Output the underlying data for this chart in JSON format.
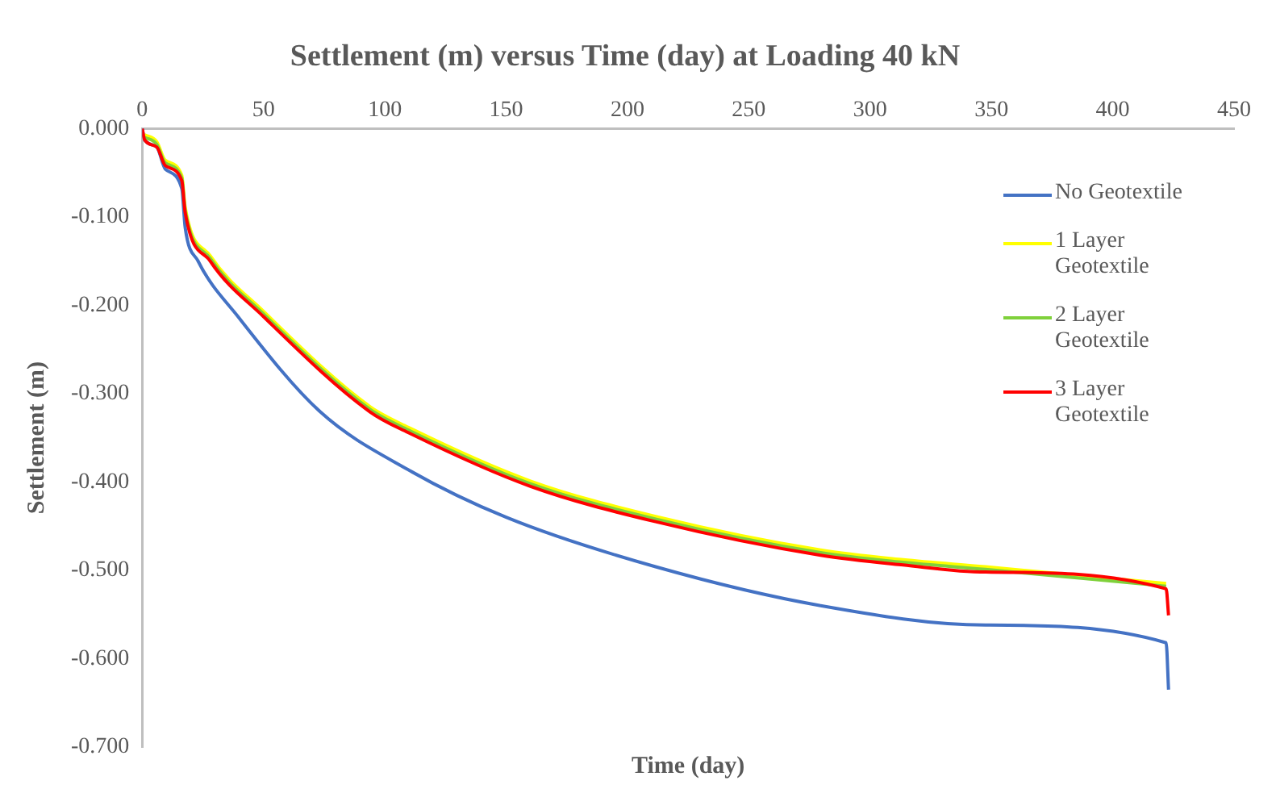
{
  "chart_data": {
    "type": "line",
    "title": "Settlement (m) versus Time (day) at Loading 40 kN",
    "xlabel": "Time (day)",
    "ylabel": "Settlement (m)",
    "xlim": [
      0,
      450
    ],
    "xticks": [
      0,
      50,
      100,
      150,
      200,
      250,
      300,
      350,
      400,
      450
    ],
    "ylim": [
      -0.7,
      0
    ],
    "yticks": [
      {
        "value": -0.7,
        "label": "-0.700"
      },
      {
        "value": -0.6,
        "label": "-0.600"
      },
      {
        "value": -0.5,
        "label": "-0.500"
      },
      {
        "value": -0.4,
        "label": "-0.400"
      },
      {
        "value": -0.3,
        "label": "-0.300"
      },
      {
        "value": -0.2,
        "label": "-0.200"
      },
      {
        "value": -0.1,
        "label": "-0.100"
      },
      {
        "value": 0,
        "label": "0.000"
      }
    ],
    "grid": false,
    "legend": "right",
    "marker": "none",
    "line_style": "solid",
    "series": [
      {
        "name": "No Geotextile",
        "color": "#4472c4",
        "x": [
          0,
          1,
          6,
          9.5,
          16.3,
          17.7,
          23,
          39.5,
          73.5,
          109.5,
          150,
          211.6,
          279.6,
          347.6,
          422,
          423
        ],
        "values": [
          0,
          -0.013,
          -0.021,
          -0.046,
          -0.068,
          -0.112,
          -0.15,
          -0.213,
          -0.321,
          -0.386,
          -0.44,
          -0.496,
          -0.54,
          -0.562,
          -0.582,
          -0.635
        ]
      },
      {
        "name": "1 Layer Geotextile",
        "color": "#ffff00",
        "x": [
          1,
          6,
          9.5,
          16.3,
          17.7,
          28,
          50,
          94,
          109.5,
          160,
          211.6,
          279.6,
          313.6,
          347.6,
          422
        ],
        "values": [
          -0.007,
          -0.015,
          -0.036,
          -0.053,
          -0.089,
          -0.144,
          -0.207,
          -0.315,
          -0.338,
          -0.399,
          -0.439,
          -0.477,
          -0.488,
          -0.496,
          -0.515
        ]
      },
      {
        "name": "2 Layer Geotextile",
        "color": "#7fd13b",
        "x": [
          1,
          6,
          9.5,
          16.3,
          17.7,
          28,
          50,
          94,
          109.5,
          160,
          211.6,
          279.6,
          313.6,
          347.6,
          422
        ],
        "values": [
          -0.01,
          -0.018,
          -0.039,
          -0.056,
          -0.092,
          -0.147,
          -0.21,
          -0.318,
          -0.341,
          -0.402,
          -0.442,
          -0.48,
          -0.491,
          -0.499,
          -0.518
        ]
      },
      {
        "name": "3 Layer Geotextile",
        "color": "#ff0000",
        "x": [
          0,
          1,
          6,
          9.5,
          16.3,
          17.7,
          28,
          50,
          94,
          109.5,
          160,
          211.6,
          279.6,
          313.6,
          347.6,
          422,
          423
        ],
        "values": [
          0,
          -0.013,
          -0.021,
          -0.042,
          -0.059,
          -0.095,
          -0.15,
          -0.213,
          -0.321,
          -0.344,
          -0.405,
          -0.445,
          -0.483,
          -0.494,
          -0.502,
          -0.521,
          -0.551
        ]
      }
    ]
  }
}
